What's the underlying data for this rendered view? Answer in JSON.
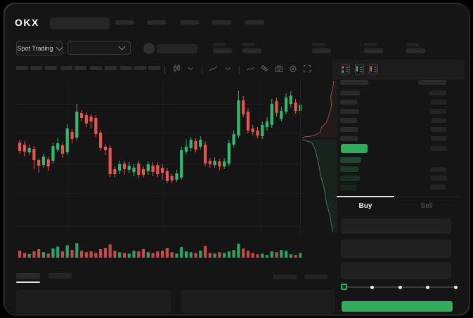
{
  "header": {
    "logo_text": "OKX",
    "search_skeleton": true,
    "nav_items_count": 5
  },
  "market_bar": {
    "market_type_label": "Spot Trading",
    "pair_selector_skeleton": true,
    "account_avatar_skeleton": true,
    "stat_groups_count": 5
  },
  "chart_toolbar": {
    "interval_skeleton_count": 10,
    "icons": [
      "candle-style-icon",
      "chevron-down-icon",
      "indicator-icon",
      "chevron-down-icon",
      "line-tool-icon",
      "compare-icon",
      "camera-icon",
      "settings-icon",
      "fullscreen-icon"
    ]
  },
  "order_book": {
    "view_icons": [
      {
        "id": "combined-book-view",
        "accents": [
          "#e8544e",
          "#2ebd70"
        ]
      },
      {
        "id": "bids-book-view",
        "accents": [
          "#2ebd70"
        ]
      },
      {
        "id": "asks-book-view",
        "accents": [
          "#e8544e"
        ]
      }
    ],
    "header_skeleton_cols": 2,
    "asks_count": 6,
    "bids_count": 4,
    "bid_amount_count": 3,
    "last_price_highlight_color": "#2eae5c"
  },
  "trade_panel": {
    "tabs": [
      {
        "label": "Buy",
        "active": true
      },
      {
        "label": "Sell",
        "active": false
      }
    ],
    "fields_count": 3,
    "slider": {
      "steps": 5,
      "active_step": 0,
      "accent": "#2eae5c"
    },
    "submit_button": {
      "color": "#2eae5c"
    }
  },
  "bottom_bar": {
    "tabs_count": 2,
    "active_tab_index": 0,
    "right_buttons_count": 2,
    "panels_count": 2
  },
  "colors": {
    "background": "#000000",
    "screen": "#151515",
    "skeleton": "#2a2a2a",
    "candle_green": "#2ebd70",
    "candle_red": "#e8544e",
    "accent_green": "#2eae5c",
    "active_text": "#eeeeee",
    "muted_text": "#5f5f5f"
  },
  "chart_data": [
    {
      "type": "candlestick",
      "title": "",
      "axis_labels_visible": false,
      "ylim": [
        0,
        100
      ],
      "grid": true,
      "grid_y_values": [
        84,
        65,
        45,
        26,
        5
      ],
      "grid_x_indices": [
        10.5,
        30.5,
        51
      ],
      "candles_ohlc": [
        [
          59.1,
          60.9,
          51.8,
          53.6
        ],
        [
          57.7,
          60,
          50,
          53.2
        ],
        [
          52.7,
          57.7,
          50.9,
          55.5
        ],
        [
          55,
          56.8,
          41.8,
          47.7
        ],
        [
          47.7,
          49.1,
          39.5,
          44.1
        ],
        [
          44.5,
          51.8,
          42.7,
          50
        ],
        [
          48.2,
          50,
          40.9,
          43.6
        ],
        [
          47.3,
          59.1,
          45.5,
          56.8
        ],
        [
          54.5,
          61.8,
          52.7,
          58.6
        ],
        [
          57.3,
          59.1,
          49.1,
          51.8
        ],
        [
          52.7,
          70.9,
          50.9,
          68.2
        ],
        [
          65.9,
          67.7,
          58.6,
          61.4
        ],
        [
          62.3,
          84.1,
          60.5,
          79.1
        ],
        [
          78.2,
          80,
          72.7,
          75
        ],
        [
          76.8,
          78.6,
          69.1,
          71.4
        ],
        [
          75.9,
          77.7,
          68.2,
          72.7
        ],
        [
          75,
          76.8,
          62.7,
          64.5
        ],
        [
          65.5,
          67.3,
          53.6,
          55.5
        ],
        [
          56.4,
          58.2,
          50.9,
          54.1
        ],
        [
          55.5,
          57.3,
          36.4,
          38.6
        ],
        [
          41.8,
          43.6,
          36.4,
          38.6
        ],
        [
          40.9,
          47.3,
          38.6,
          45
        ],
        [
          45.5,
          47.3,
          38.2,
          41.8
        ],
        [
          41.4,
          46.4,
          39.1,
          44.1
        ],
        [
          40,
          45,
          37.3,
          42.7
        ],
        [
          45.5,
          47.3,
          35.9,
          38.2
        ],
        [
          41.8,
          43.6,
          36.4,
          38.2
        ],
        [
          40.5,
          46.8,
          38.2,
          45
        ],
        [
          44.1,
          46.4,
          37.3,
          40
        ],
        [
          44.5,
          46.4,
          36.4,
          38.6
        ],
        [
          42.7,
          45,
          35,
          39.5
        ],
        [
          40.5,
          42.7,
          32.7,
          34.1
        ],
        [
          37.3,
          39.1,
          32.7,
          34.5
        ],
        [
          35,
          41.4,
          33.6,
          39.1
        ],
        [
          36.4,
          56.4,
          35,
          54.1
        ],
        [
          53.2,
          60.9,
          51.4,
          56.4
        ],
        [
          55.5,
          62.7,
          53.6,
          60.9
        ],
        [
          60,
          61.8,
          52.7,
          54.5
        ],
        [
          56.4,
          63.2,
          54.5,
          60.9
        ],
        [
          57.7,
          60,
          43.6,
          45.5
        ],
        [
          47.3,
          49.1,
          42.7,
          45
        ],
        [
          44.5,
          49.5,
          42.7,
          47.3
        ],
        [
          46.8,
          48.6,
          40.9,
          43.6
        ],
        [
          43.6,
          49.1,
          41.8,
          46.8
        ],
        [
          45.5,
          60.9,
          43.6,
          58.6
        ],
        [
          57.7,
          66.8,
          55.9,
          64.5
        ],
        [
          63.6,
          92.7,
          61.8,
          86.4
        ],
        [
          86.4,
          89.1,
          75.5,
          77.3
        ],
        [
          79.1,
          81.4,
          65,
          66.8
        ],
        [
          68.2,
          70.5,
          63.6,
          65.9
        ],
        [
          66.8,
          69.1,
          61.8,
          63.6
        ],
        [
          63.2,
          72.7,
          61.4,
          70.5
        ],
        [
          69.1,
          75.5,
          66.8,
          72.7
        ],
        [
          70.5,
          87.3,
          68.6,
          84.1
        ],
        [
          85.9,
          88.2,
          75.9,
          78.2
        ],
        [
          74.5,
          82.3,
          72.7,
          79.5
        ],
        [
          79.1,
          90.9,
          77.3,
          88.2
        ],
        [
          84.1,
          92.3,
          81.8,
          89.5
        ],
        [
          85,
          87.3,
          77.7,
          79.5
        ],
        [
          79.5,
          85.9,
          77.3,
          83.6
        ]
      ]
    },
    {
      "type": "bar",
      "title": "volume",
      "ylim": [
        0,
        100
      ],
      "color_rule": "green if candle close >= open else red",
      "values": [
        38,
        26,
        20,
        34,
        46,
        30,
        22,
        50,
        60,
        34,
        68,
        42,
        80,
        38,
        30,
        34,
        26,
        46,
        54,
        72,
        38,
        30,
        26,
        22,
        38,
        34,
        46,
        30,
        26,
        34,
        38,
        54,
        30,
        22,
        58,
        34,
        30,
        26,
        38,
        65,
        26,
        22,
        30,
        26,
        34,
        42,
        76,
        50,
        38,
        26,
        18,
        22,
        15,
        34,
        30,
        42,
        38,
        18,
        15,
        26
      ]
    },
    {
      "type": "area",
      "title": "vertical depth",
      "asks_curve": [
        [
          0.9,
          0.01
        ],
        [
          0.87,
          0.06
        ],
        [
          0.82,
          0.11
        ],
        [
          0.84,
          0.17
        ],
        [
          0.76,
          0.24
        ],
        [
          0.7,
          0.28
        ],
        [
          0.57,
          0.31
        ],
        [
          0.52,
          0.345
        ],
        [
          0.36,
          0.365
        ],
        [
          0.04,
          0.375
        ]
      ],
      "bids_curve": [
        [
          0.04,
          0.39
        ],
        [
          0.3,
          0.41
        ],
        [
          0.4,
          0.46
        ],
        [
          0.48,
          0.54
        ],
        [
          0.55,
          0.63
        ],
        [
          0.65,
          0.72
        ],
        [
          0.7,
          0.8
        ],
        [
          0.8,
          0.88
        ],
        [
          0.83,
          0.935
        ],
        [
          0.88,
          0.99
        ]
      ],
      "asks_color": "#c96a64",
      "bids_color": "#57a98f"
    }
  ]
}
